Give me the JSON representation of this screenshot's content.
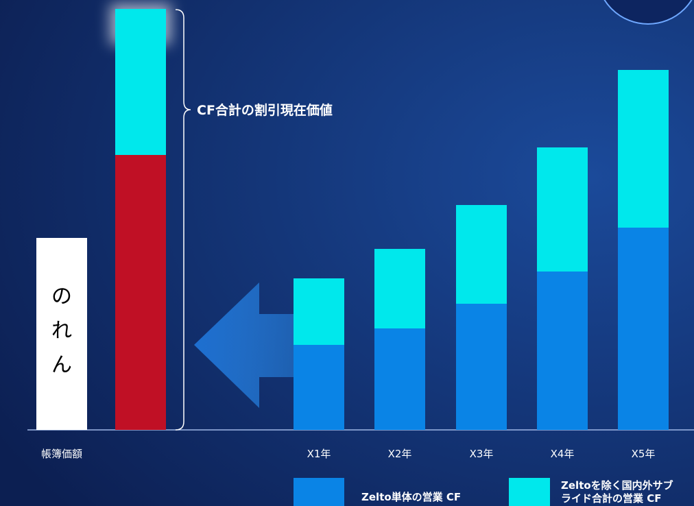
{
  "annotation": "CF合計の割引現在価値",
  "goodwill_label": [
    "の",
    "れ",
    "ん"
  ],
  "book_value_label": "帳簿価額",
  "years": [
    "X1年",
    "X2年",
    "X3年",
    "X4年",
    "X5年"
  ],
  "legend": [
    {
      "lines": [
        "Zelto単体の営業 CF"
      ]
    },
    {
      "lines": [
        "Zeltoを除く国内外サブ",
        "ライド合計の営業 CF"
      ]
    }
  ]
}
